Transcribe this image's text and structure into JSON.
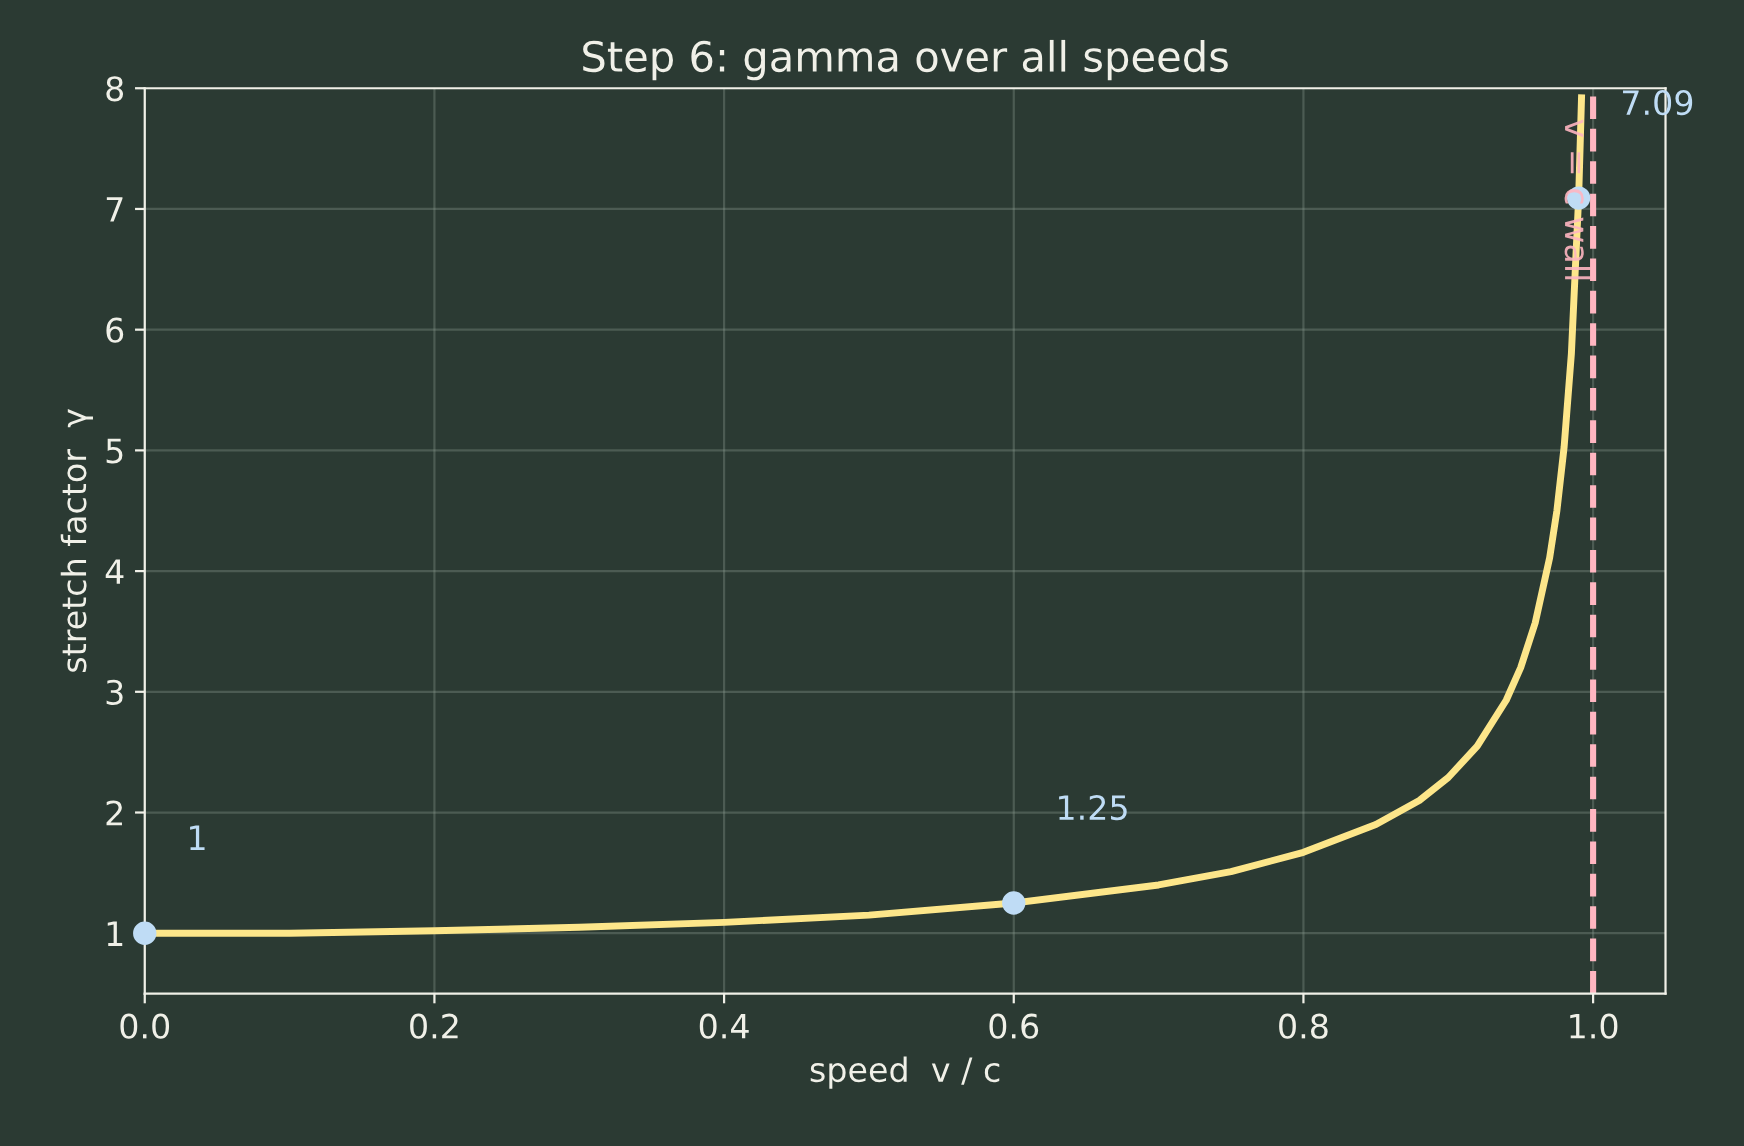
{
  "chart_data": {
    "type": "line",
    "title": "Step 6: gamma over all speeds",
    "xlabel": "speed  v / c",
    "ylabel": "stretch factor  γ",
    "xlim": [
      0,
      1.05
    ],
    "ylim": [
      0.5,
      8
    ],
    "xticks": [
      {
        "value": 0,
        "label": "0.0"
      },
      0.2,
      0.4,
      0.6,
      0.8,
      {
        "value": 1,
        "label": "1.0"
      }
    ],
    "yticks": [
      1,
      2,
      3,
      4,
      5,
      6,
      7,
      8
    ],
    "grid": true,
    "series": [
      {
        "color": "#fde68a",
        "x": [
          0,
          0.1,
          0.2,
          0.3,
          0.4,
          0.5,
          0.6,
          0.7,
          0.75,
          0.8,
          0.85,
          0.88,
          0.9,
          0.92,
          0.94,
          0.95,
          0.96,
          0.97,
          0.975,
          0.98,
          0.985,
          0.99,
          0.992
        ],
        "values": [
          1,
          1.0,
          1.02,
          1.05,
          1.09,
          1.15,
          1.25,
          1.4,
          1.51,
          1.67,
          1.9,
          2.1,
          2.29,
          2.55,
          2.93,
          3.2,
          3.57,
          4.11,
          4.5,
          5.03,
          5.8,
          7.09,
          7.92
        ]
      },
      {
        "type": "scatter",
        "color": "#bfdcf5",
        "x": [
          0,
          0.6,
          0.99
        ],
        "values": [
          1,
          1.25,
          7.09
        ]
      }
    ],
    "ref_lines": [
      {
        "axis": "x",
        "value": 1,
        "label": "v = c wall",
        "color": "#ffb6c1",
        "line_style": "dashed"
      }
    ],
    "annotations": [
      {
        "text": "1",
        "x": 0,
        "y": 1
      },
      {
        "text": "1.25",
        "x": 0.6,
        "y": 1.25
      },
      {
        "text": "7.09",
        "x": 0.99,
        "y": 7.09
      }
    ]
  }
}
